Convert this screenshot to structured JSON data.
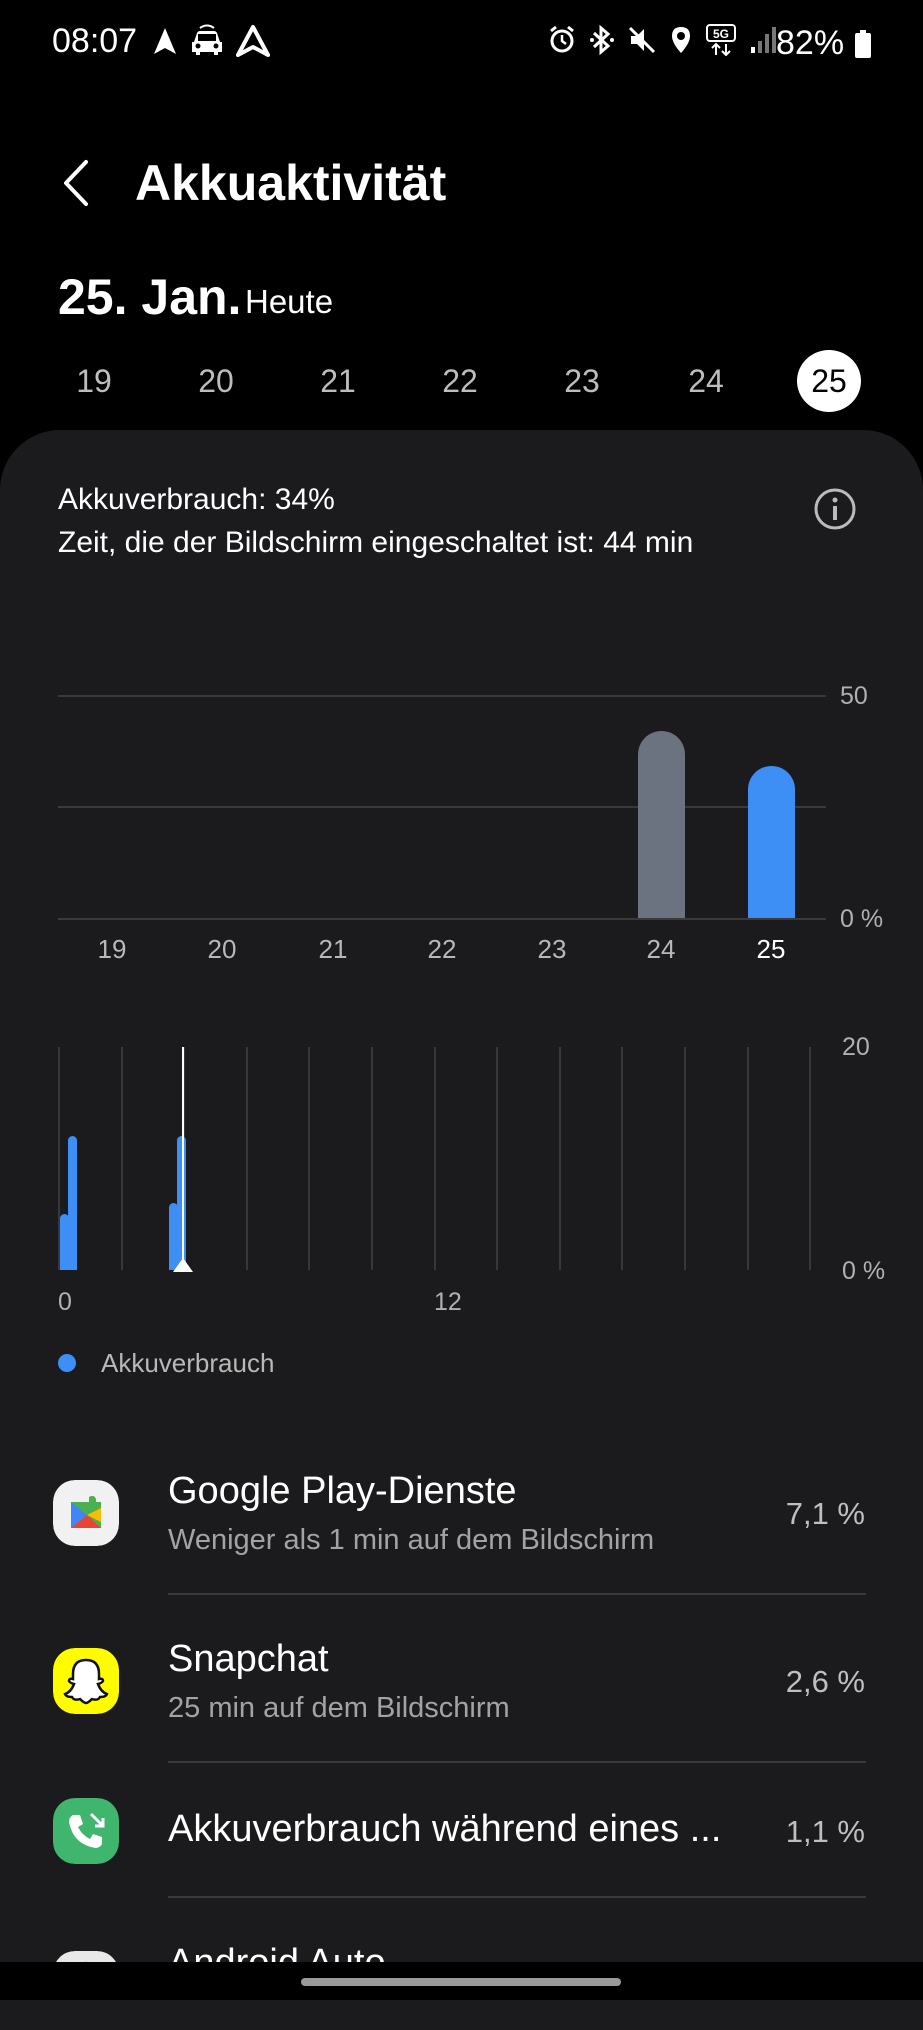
{
  "status_bar": {
    "time": "08:07",
    "battery_percent": "82%",
    "left_icons": [
      "navigation-icon",
      "car-icon",
      "android-auto-icon"
    ],
    "right_icons": [
      "alarm-icon",
      "bluetooth-icon",
      "mute-icon",
      "location-icon",
      "5g-icon",
      "signal-icon",
      "battery-icon"
    ]
  },
  "header": {
    "title": "Akkuaktivität",
    "date_main": "25. Jan.",
    "date_sub": "Heute"
  },
  "days": [
    "19",
    "20",
    "21",
    "22",
    "23",
    "24",
    "25"
  ],
  "selected_day": "25",
  "summary": {
    "usage": "Akkuverbrauch: 34%",
    "screen_time": "Zeit, die der Bildschirm eingeschaltet ist: 44 min"
  },
  "colors": {
    "accent": "#3d8ef5",
    "previous_bar": "#6b7280",
    "card": "#1b1b1d"
  },
  "chart_data": [
    {
      "type": "bar",
      "categories": [
        "19",
        "20",
        "21",
        "22",
        "23",
        "24",
        "25"
      ],
      "values": [
        0,
        0,
        0,
        0,
        0,
        42,
        34
      ],
      "y_tick_labels": [
        "50",
        "0 %"
      ],
      "ylim": [
        0,
        50
      ],
      "grid": true
    },
    {
      "type": "bar",
      "x_tick_labels": [
        "0",
        "12"
      ],
      "y_tick_labels": [
        "20",
        "0 %"
      ],
      "ylim": [
        0,
        20
      ],
      "series": [
        {
          "x": [
            0,
            0.25,
            3.5,
            3.75
          ],
          "values": [
            5,
            12,
            6,
            12
          ]
        }
      ],
      "current_time_marker_hour": 4,
      "grid": true
    }
  ],
  "legend": {
    "label": "Akkuverbrauch"
  },
  "apps": [
    {
      "name": "Google Play-Dienste",
      "sub": "Weniger als 1 min auf dem Bildschirm",
      "pct": "7,1 %",
      "icon": "google-play-services-icon"
    },
    {
      "name": "Snapchat",
      "sub": "25 min auf dem Bildschirm",
      "pct": "2,6 %",
      "icon": "snapchat-icon"
    },
    {
      "name": "Akkuverbrauch während eines ...",
      "sub": "",
      "pct": "1,1 %",
      "icon": "phone-call-icon"
    },
    {
      "name": "Android Auto",
      "sub": "",
      "pct": "",
      "icon": "android-auto-app-icon"
    }
  ]
}
